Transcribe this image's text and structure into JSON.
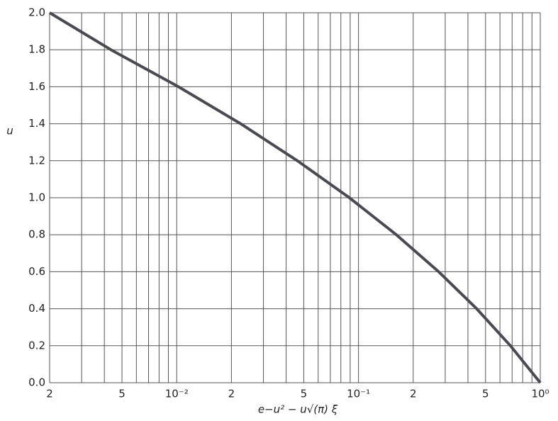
{
  "chart_data": {
    "type": "line",
    "x_label": "e−u² − u√(π) ξ",
    "y_label": "u",
    "x": [
      0.002,
      0.00435,
      0.01023,
      0.0225,
      0.0461,
      0.0891,
      0.1616,
      0.276,
      0.447,
      0.685,
      1.0
    ],
    "series": [
      {
        "name": "u",
        "color": "#4a4a52",
        "values": [
          2.0,
          1.8,
          1.6,
          1.4,
          1.2,
          1.0,
          0.8,
          0.6,
          0.4,
          0.2,
          0.0
        ]
      }
    ],
    "xlim": [
      0.002,
      1.0
    ],
    "log_x": true,
    "xticks": [
      {
        "value": 0.002,
        "label": "2"
      },
      {
        "value": 0.005,
        "label": "5"
      },
      {
        "value": 0.01,
        "label": "10⁻²"
      },
      {
        "value": 0.02,
        "label": "2"
      },
      {
        "value": 0.05,
        "label": "5"
      },
      {
        "value": 0.1,
        "label": "10⁻¹"
      },
      {
        "value": 0.2,
        "label": "2"
      },
      {
        "value": 0.5,
        "label": "5"
      },
      {
        "value": 1.0,
        "label": "10⁰"
      }
    ],
    "xminorticks": [
      0.003,
      0.004,
      0.006,
      0.007,
      0.008,
      0.009,
      0.03,
      0.04,
      0.06,
      0.07,
      0.08,
      0.09,
      0.3,
      0.4,
      0.6,
      0.7,
      0.8,
      0.9
    ],
    "ylim": [
      0,
      2.0
    ],
    "yticks": [
      {
        "value": 0,
        "label": "0.0"
      },
      0.2,
      0.4,
      0.6,
      0.8,
      {
        "value": 1,
        "label": "1.0"
      },
      1.2,
      1.4,
      1.6,
      1.8,
      {
        "value": 2,
        "label": "2.0"
      }
    ],
    "grid": true
  }
}
